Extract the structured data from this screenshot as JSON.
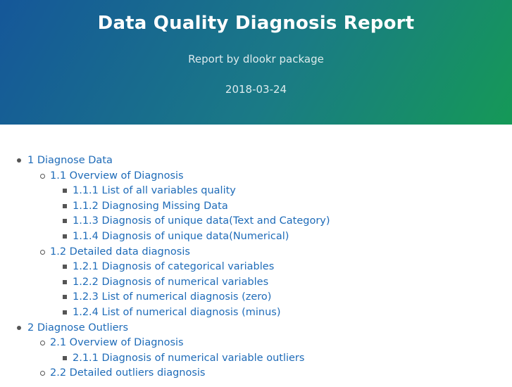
{
  "header": {
    "title": "Data Quality Diagnosis Report",
    "subtitle": "Report by dlookr package",
    "date": "2018-03-24"
  },
  "toc": [
    {
      "level": 1,
      "label": "1 Diagnose Data"
    },
    {
      "level": 2,
      "label": "1.1 Overview of Diagnosis"
    },
    {
      "level": 3,
      "label": "1.1.1 List of all variables quality"
    },
    {
      "level": 3,
      "label": "1.1.2 Diagnosing Missing Data"
    },
    {
      "level": 3,
      "label": "1.1.3 Diagnosis of unique data(Text and Category)"
    },
    {
      "level": 3,
      "label": "1.1.4 Diagnosis of unique data(Numerical)"
    },
    {
      "level": 2,
      "label": "1.2 Detailed data diagnosis"
    },
    {
      "level": 3,
      "label": "1.2.1 Diagnosis of categorical variables"
    },
    {
      "level": 3,
      "label": "1.2.2 Diagnosis of numerical variables"
    },
    {
      "level": 3,
      "label": "1.2.3 List of numerical diagnosis (zero)"
    },
    {
      "level": 3,
      "label": "1.2.4 List of numerical diagnosis (minus)"
    },
    {
      "level": 1,
      "label": "2 Diagnose Outliers"
    },
    {
      "level": 2,
      "label": "2.1 Overview of Diagnosis"
    },
    {
      "level": 3,
      "label": "2.1.1 Diagnosis of numerical variable outliers"
    },
    {
      "level": 2,
      "label": "2.2 Detailed outliers diagnosis"
    }
  ]
}
